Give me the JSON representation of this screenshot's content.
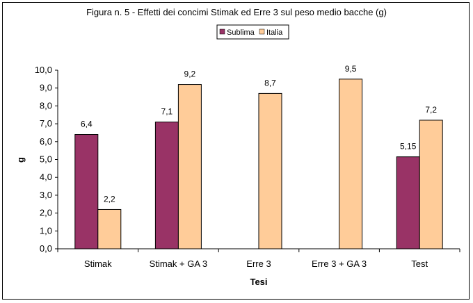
{
  "chart_data": {
    "type": "bar",
    "title": "Figura n. 5 - Effetti dei concimi Stimak ed Erre 3 sul peso medio bacche (g)",
    "xlabel": "Tesi",
    "ylabel": "g",
    "ylim": [
      0,
      10
    ],
    "yticks": [
      "0,0",
      "1,0",
      "2,0",
      "3,0",
      "4,0",
      "5,0",
      "6,0",
      "7,0",
      "8,0",
      "9,0",
      "10,0"
    ],
    "categories": [
      "Stimak",
      "Stimak + GA 3",
      "Erre 3",
      "Erre 3 + GA 3",
      "Test"
    ],
    "series": [
      {
        "name": "Sublima",
        "color": "#993366",
        "values": [
          6.4,
          7.1,
          null,
          null,
          5.15
        ],
        "labels": [
          "6,4",
          "7,1",
          "",
          "",
          "5,15"
        ]
      },
      {
        "name": "Italia",
        "color": "#FFCC99",
        "values": [
          2.2,
          9.2,
          8.7,
          9.5,
          7.2
        ],
        "labels": [
          "2,2",
          "9,2",
          "8,7",
          "9,5",
          "7,2"
        ]
      }
    ],
    "grid": false,
    "legend_position": "top"
  }
}
